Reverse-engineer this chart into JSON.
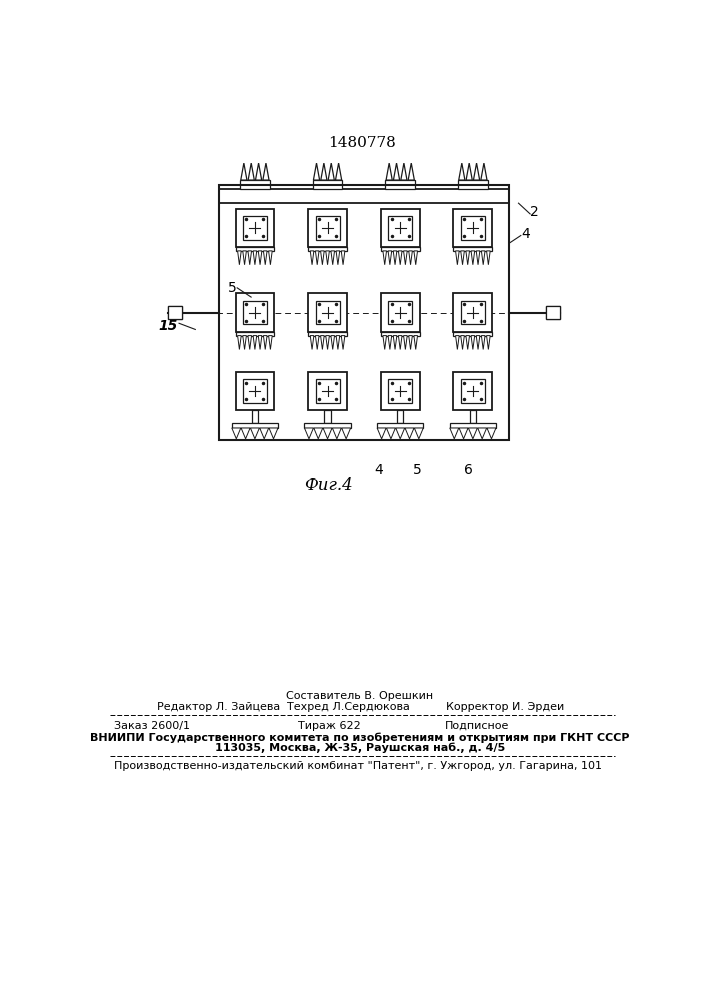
{
  "patent_number": "1480778",
  "fig_label": "Фиг.4",
  "label_2": "2",
  "label_4": "4",
  "label_5": "5",
  "label_15": "15",
  "label_4b": "4",
  "label_5b": "5",
  "label_6b": "6",
  "footer_above": "Составитель В. Орешкин",
  "footer_ed": "Редактор Л. Зайцева",
  "footer_tech": "Техред Л.Сердюкова",
  "footer_corr": "Корректор И. Эрдеи",
  "footer_order": "Заказ 2600/1",
  "footer_tirazh": "Тираж 622",
  "footer_podp": "Подписное",
  "footer_vniip": "ВНИИПИ Государственного комитета по изобретениям и открытиям при ГКНТ СССР",
  "footer_addr": "113035, Москва, Ж-35, Раушская наб., д. 4/5",
  "footer_prod": "Производственно-издательский комбинат \"Патент\", г. Ужгород, ул. Гагарина, 101"
}
